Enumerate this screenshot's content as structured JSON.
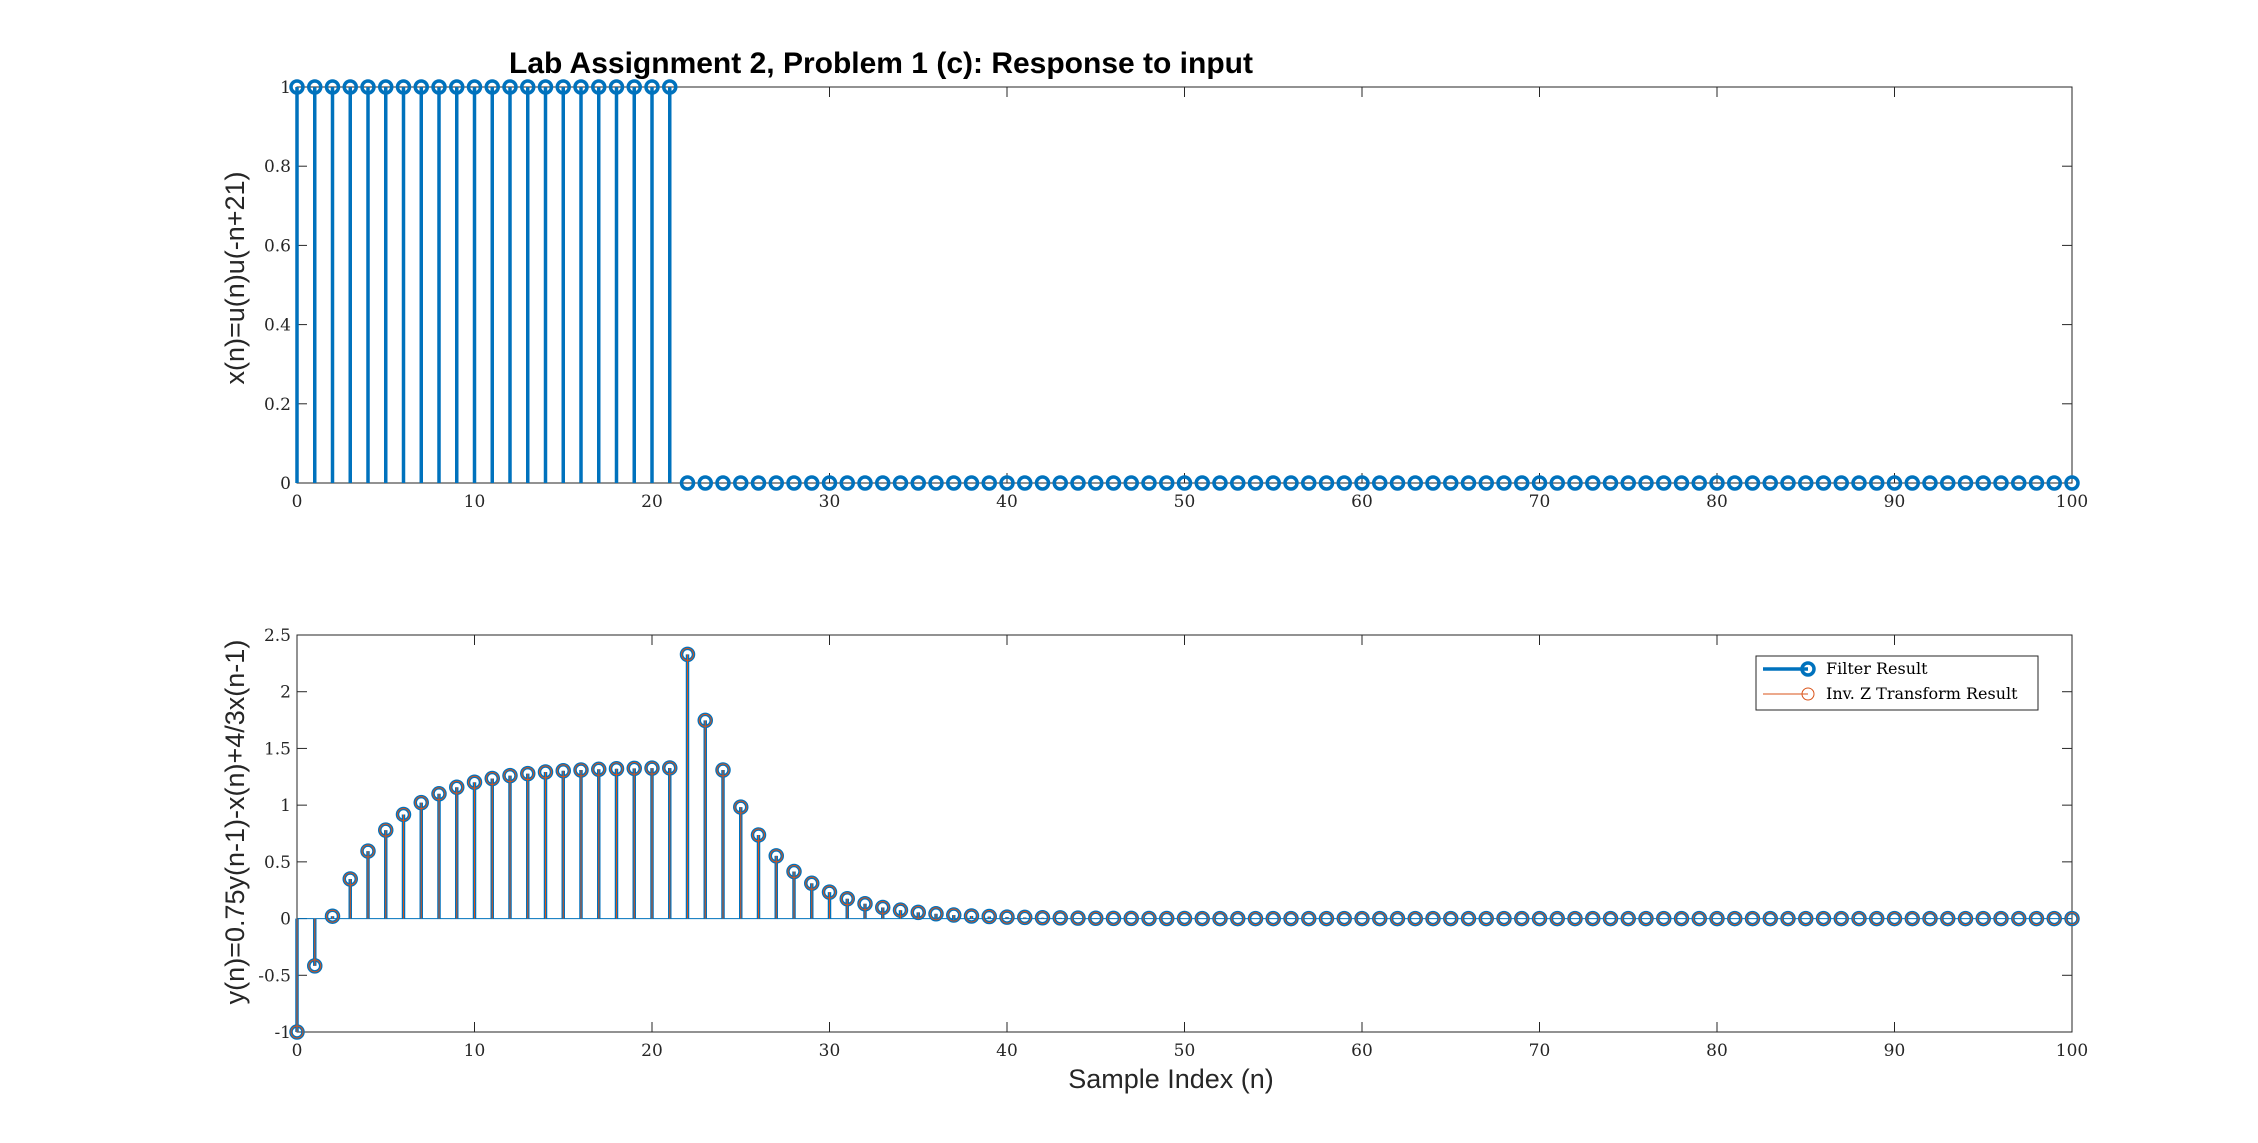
{
  "chart_data": [
    {
      "type": "stem",
      "title": "Lab Assignment 2, Problem 1 (c): Response to input",
      "ylabel": "x(n)=u(n)u(-n+21)",
      "xlabel": "",
      "xlim": [
        0,
        100
      ],
      "ylim": [
        0,
        1
      ],
      "xticks": [
        0,
        10,
        20,
        30,
        40,
        50,
        60,
        70,
        80,
        90,
        100
      ],
      "yticks": [
        0,
        0.2,
        0.4,
        0.6,
        0.8,
        1
      ],
      "ytick_labels": [
        "0",
        "0.2",
        "0.4",
        "0.6",
        "0.8",
        "1"
      ],
      "grid": false,
      "color": "#0072BD",
      "series": [
        {
          "x_start": 0,
          "values": [
            1,
            1,
            1,
            1,
            1,
            1,
            1,
            1,
            1,
            1,
            1,
            1,
            1,
            1,
            1,
            1,
            1,
            1,
            1,
            1,
            1,
            1,
            0,
            0,
            0,
            0,
            0,
            0,
            0,
            0,
            0,
            0,
            0,
            0,
            0,
            0,
            0,
            0,
            0,
            0,
            0,
            0,
            0,
            0,
            0,
            0,
            0,
            0,
            0,
            0,
            0,
            0,
            0,
            0,
            0,
            0,
            0,
            0,
            0,
            0,
            0,
            0,
            0,
            0,
            0,
            0,
            0,
            0,
            0,
            0,
            0,
            0,
            0,
            0,
            0,
            0,
            0,
            0,
            0,
            0,
            0,
            0,
            0,
            0,
            0,
            0,
            0,
            0,
            0,
            0,
            0,
            0,
            0,
            0,
            0,
            0,
            0,
            0,
            0,
            0,
            0
          ]
        }
      ]
    },
    {
      "type": "stem",
      "title": "",
      "ylabel": "y(n)=0.75y(n-1)-x(n)+4/3x(n-1)",
      "xlabel": "Sample Index (n)",
      "xlim": [
        0,
        100
      ],
      "ylim": [
        -1,
        2.5
      ],
      "xticks": [
        0,
        10,
        20,
        30,
        40,
        50,
        60,
        70,
        80,
        90,
        100
      ],
      "yticks": [
        -1,
        -0.5,
        0,
        0.5,
        1,
        1.5,
        2,
        2.5
      ],
      "ytick_labels": [
        "-1",
        "-0.5",
        "0",
        "0.5",
        "1",
        "1.5",
        "2",
        "2.5"
      ],
      "grid": false,
      "legend_position": "top-right",
      "series": [
        {
          "name": "Filter Result",
          "color": "#0072BD",
          "x_start": 0,
          "values": [
            -1,
            -0.417,
            0.021,
            0.349,
            0.595,
            0.78,
            0.918,
            1.022,
            1.1,
            1.158,
            1.202,
            1.235,
            1.26,
            1.278,
            1.292,
            1.303,
            1.31,
            1.316,
            1.321,
            1.324,
            1.326,
            1.328,
            2.329,
            1.747,
            1.31,
            0.983,
            0.737,
            0.553,
            0.415,
            0.311,
            0.233,
            0.175,
            0.131,
            0.098,
            0.074,
            0.055,
            0.042,
            0.031,
            0.023,
            0.018,
            0.013,
            0.01,
            0.007,
            0.006,
            0.004,
            0.003,
            0.002,
            0.002,
            0.001,
            0.001,
            0.001,
            0,
            0,
            0,
            0,
            0,
            0,
            0,
            0,
            0,
            0,
            0,
            0,
            0,
            0,
            0,
            0,
            0,
            0,
            0,
            0,
            0,
            0,
            0,
            0,
            0,
            0,
            0,
            0,
            0,
            0,
            0,
            0,
            0,
            0,
            0,
            0,
            0,
            0,
            0,
            0,
            0,
            0,
            0,
            0,
            0,
            0,
            0,
            0,
            0,
            0
          ]
        },
        {
          "name": "Inv. Z Transform Result",
          "color": "#D95319",
          "x_start": 0,
          "values": [
            -1,
            -0.417,
            0.021,
            0.349,
            0.595,
            0.78,
            0.918,
            1.022,
            1.1,
            1.158,
            1.202,
            1.235,
            1.26,
            1.278,
            1.292,
            1.303,
            1.31,
            1.316,
            1.321,
            1.324,
            1.326,
            1.328,
            2.329,
            1.747,
            1.31,
            0.983,
            0.737,
            0.553,
            0.415,
            0.311,
            0.233,
            0.175,
            0.131,
            0.098,
            0.074,
            0.055,
            0.042,
            0.031,
            0.023,
            0.018,
            0.013,
            0.01,
            0.007,
            0.006,
            0.004,
            0.003,
            0.002,
            0.002,
            0.001,
            0.001,
            0.001,
            0,
            0,
            0,
            0,
            0,
            0,
            0,
            0,
            0,
            0,
            0,
            0,
            0,
            0,
            0,
            0,
            0,
            0,
            0,
            0,
            0,
            0,
            0,
            0,
            0,
            0,
            0,
            0,
            0,
            0,
            0,
            0,
            0,
            0,
            0,
            0,
            0,
            0,
            0,
            0,
            0,
            0,
            0,
            0,
            0,
            0,
            0,
            0,
            0,
            0
          ]
        }
      ]
    }
  ]
}
